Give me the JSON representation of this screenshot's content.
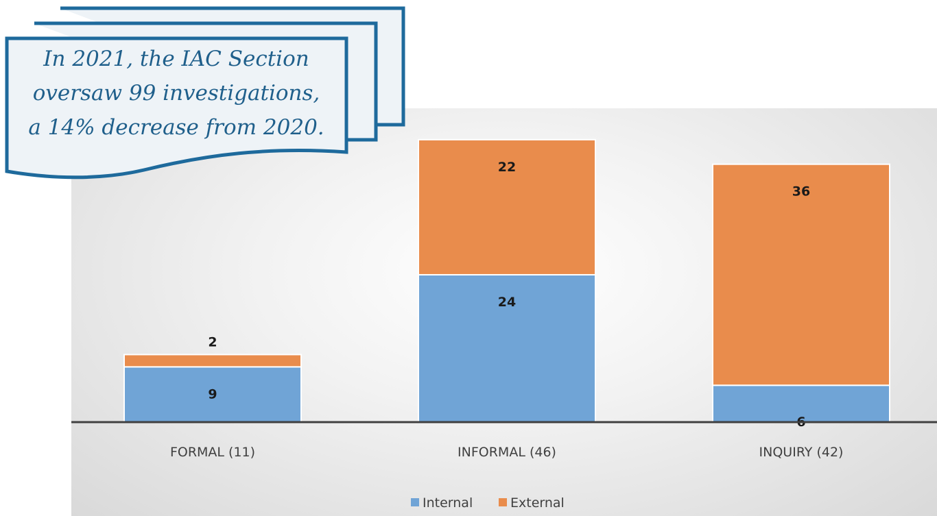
{
  "chart_data": {
    "type": "bar",
    "stacked": true,
    "categories": [
      "FORMAL (11)",
      "INFORMAL (46)",
      "INQUIRY (42)"
    ],
    "series": [
      {
        "name": "Internal",
        "values": [
          9,
          24,
          6
        ],
        "color": "#70a4d6"
      },
      {
        "name": "External",
        "values": [
          2,
          22,
          36
        ],
        "color": "#e98c4c"
      }
    ],
    "ylim": [
      0,
      50
    ],
    "grid": false,
    "legend": "bottom-center",
    "title": "",
    "xlabel": "",
    "ylabel": ""
  },
  "callout": {
    "lines": [
      "In 2021, the IAC Section",
      "oversaw 99 investigations,",
      "a 14% decrease from 2020."
    ],
    "border_color": "#1e6a9c",
    "fill_color": "#eef3f7"
  }
}
